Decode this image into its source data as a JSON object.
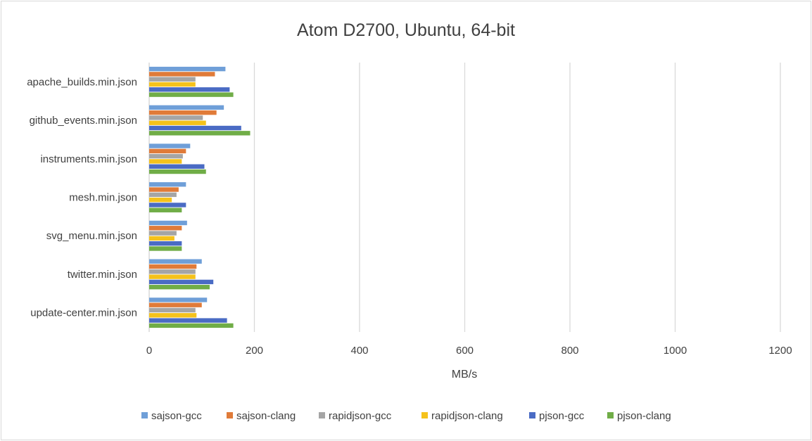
{
  "chart_data": {
    "type": "bar",
    "orientation": "horizontal",
    "title": "Atom D2700, Ubuntu, 64-bit",
    "xlabel": "MB/s",
    "ylabel": "",
    "xlim": [
      0,
      1200
    ],
    "xticks": [
      0,
      200,
      400,
      600,
      800,
      1000,
      1200
    ],
    "grid": true,
    "legend_position": "bottom",
    "categories": [
      "apache_builds.min.json",
      "github_events.min.json",
      "instruments.min.json",
      "mesh.min.json",
      "svg_menu.min.json",
      "twitter.min.json",
      "update-center.min.json"
    ],
    "series": [
      {
        "name": "sajson-gcc",
        "color": "#6f9fd8",
        "values": [
          145,
          142,
          78,
          70,
          72,
          100,
          110
        ]
      },
      {
        "name": "sajson-clang",
        "color": "#e07b39",
        "values": [
          125,
          128,
          70,
          56,
          62,
          90,
          100
        ]
      },
      {
        "name": "rapidjson-gcc",
        "color": "#a5a5a5",
        "values": [
          88,
          102,
          64,
          52,
          52,
          88,
          88
        ]
      },
      {
        "name": "rapidjson-clang",
        "color": "#f5c21b",
        "values": [
          88,
          108,
          62,
          43,
          48,
          88,
          90
        ]
      },
      {
        "name": "pjson-gcc",
        "color": "#4a6bc4",
        "values": [
          153,
          175,
          105,
          70,
          62,
          122,
          148
        ]
      },
      {
        "name": "pjson-clang",
        "color": "#70ad47",
        "values": [
          160,
          192,
          108,
          62,
          62,
          115,
          160
        ]
      }
    ]
  }
}
